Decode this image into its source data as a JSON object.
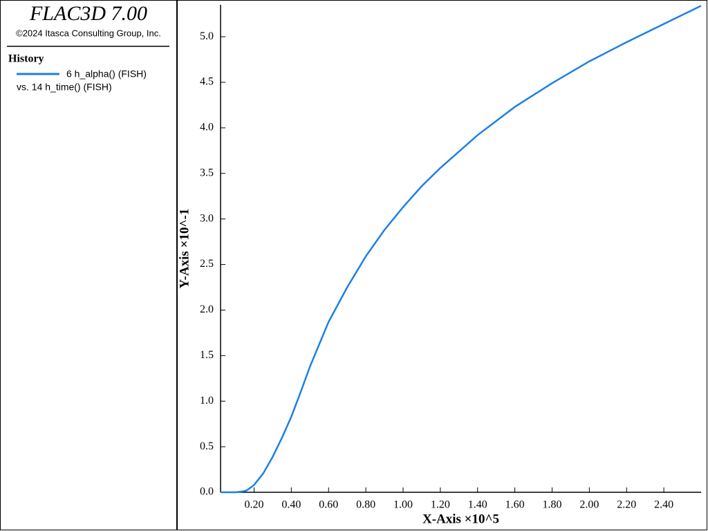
{
  "chart_data": {
    "type": "line",
    "title": "FLAC3D 7.00",
    "subtitle": "©2024 Itasca Consulting Group, Inc.",
    "legend_title": "History",
    "legend_x_source": "vs. 14 h_time() (FISH)",
    "x_label": "X-Axis ×10^5",
    "y_label": "Y-Axis ×10^-1",
    "x": [
      0.02,
      0.1,
      0.14,
      0.16,
      0.2,
      0.25,
      0.3,
      0.35,
      0.4,
      0.45,
      0.5,
      0.6,
      0.7,
      0.8,
      0.9,
      1.0,
      1.1,
      1.2,
      1.4,
      1.6,
      1.8,
      2.0,
      2.2,
      2.4,
      2.6
    ],
    "series": [
      {
        "name": "6 h_alpha() (FISH)",
        "color": "#1a80e6",
        "values": [
          0.0,
          0.0,
          0.01,
          0.02,
          0.08,
          0.21,
          0.39,
          0.6,
          0.83,
          1.1,
          1.38,
          1.87,
          2.25,
          2.59,
          2.88,
          3.13,
          3.36,
          3.56,
          3.92,
          4.23,
          4.49,
          4.73,
          4.94,
          5.14,
          5.34
        ]
      }
    ],
    "xlim": [
      0.02,
      2.6
    ],
    "ylim": [
      0,
      5.35
    ],
    "xticks": [
      {
        "value": 0.2,
        "label": "0.20"
      },
      {
        "value": 0.4,
        "label": "0.40"
      },
      {
        "value": 0.6,
        "label": "0.60"
      },
      {
        "value": 0.8,
        "label": "0.80"
      },
      {
        "value": 1.0,
        "label": "1.00"
      },
      {
        "value": 1.2,
        "label": "1.20"
      },
      {
        "value": 1.4,
        "label": "1.40"
      },
      {
        "value": 1.6,
        "label": "1.60"
      },
      {
        "value": 1.8,
        "label": "1.80"
      },
      {
        "value": 2.0,
        "label": "2.00"
      },
      {
        "value": 2.2,
        "label": "2.20"
      },
      {
        "value": 2.4,
        "label": "2.40"
      }
    ],
    "yticks": [
      {
        "value": 0,
        "label": "0.0"
      },
      0.5,
      {
        "value": 1,
        "label": "1.0"
      },
      1.5,
      {
        "value": 2,
        "label": "2.0"
      },
      2.5,
      {
        "value": 3,
        "label": "3.0"
      },
      3.5,
      {
        "value": 4,
        "label": "4.0"
      },
      4.5,
      {
        "value": 5,
        "label": "5.0"
      }
    ]
  }
}
